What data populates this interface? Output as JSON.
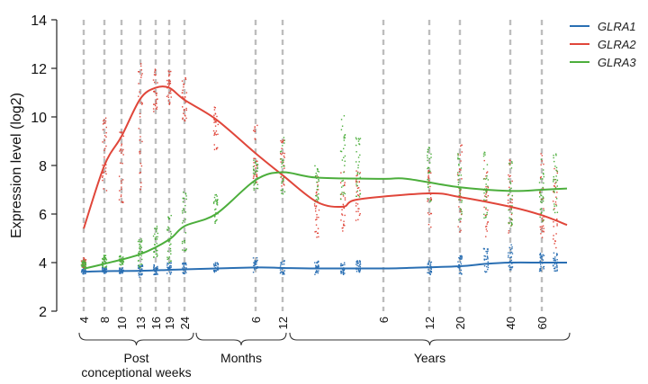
{
  "chart_data": {
    "type": "line",
    "ylabel": "Expression level (log2)",
    "ylim": [
      2,
      14
    ],
    "yticks": [
      2,
      4,
      6,
      8,
      10,
      12,
      14
    ],
    "x_ticks": [
      {
        "label": "4",
        "key": "4w"
      },
      {
        "label": "8",
        "key": "8w"
      },
      {
        "label": "10",
        "key": "10w"
      },
      {
        "label": "13",
        "key": "13w"
      },
      {
        "label": "16",
        "key": "16w"
      },
      {
        "label": "19",
        "key": "19w"
      },
      {
        "label": "24",
        "key": "24w"
      },
      {
        "label": "6",
        "key": "6m"
      },
      {
        "label": "12",
        "key": "12m"
      },
      {
        "label": "6",
        "key": "6y"
      },
      {
        "label": "12",
        "key": "12y"
      },
      {
        "label": "20",
        "key": "20y"
      },
      {
        "label": "40",
        "key": "40y"
      },
      {
        "label": "60",
        "key": "60y"
      }
    ],
    "age_groups": [
      {
        "label_lines": [
          "Post",
          "conceptional weeks"
        ],
        "from": "4w",
        "to": "24w"
      },
      {
        "label_lines": [
          "Months"
        ],
        "from": "24w",
        "to": "12m"
      },
      {
        "label_lines": [
          "Years"
        ],
        "from": "12m",
        "to": "80y"
      }
    ],
    "series": [
      {
        "name": "GLRA1",
        "color": "#2a6fb3",
        "points": [
          [
            "4w",
            3.62
          ],
          [
            "8w",
            3.65
          ],
          [
            "13w",
            3.66
          ],
          [
            "19w",
            3.7
          ],
          [
            "24w",
            3.72
          ],
          [
            "6m",
            3.8
          ],
          [
            "12m",
            3.78
          ],
          [
            "2y",
            3.76
          ],
          [
            "6y",
            3.76
          ],
          [
            "10y",
            3.78
          ],
          [
            "20y",
            3.85
          ],
          [
            "30y",
            3.95
          ],
          [
            "40y",
            4.0
          ],
          [
            "60y",
            4.0
          ],
          [
            "80y",
            4.0
          ]
        ]
      },
      {
        "name": "GLRA2",
        "color": "#e0463a",
        "points": [
          [
            "4w",
            5.4
          ],
          [
            "8w",
            8.0
          ],
          [
            "10w",
            9.2
          ],
          [
            "13w",
            10.75
          ],
          [
            "16w",
            11.2
          ],
          [
            "19w",
            11.2
          ],
          [
            "24w",
            10.7
          ],
          [
            "1m",
            9.9
          ],
          [
            "6m",
            8.5
          ],
          [
            "12m",
            7.6
          ],
          [
            "2y",
            6.5
          ],
          [
            "4y",
            6.3
          ],
          [
            "8y",
            6.6
          ],
          [
            "12y",
            6.85
          ],
          [
            "20y",
            6.7
          ],
          [
            "40y",
            6.3
          ],
          [
            "60y",
            5.95
          ],
          [
            "80y",
            5.55
          ]
        ]
      },
      {
        "name": "GLRA3",
        "color": "#4cae3c",
        "points": [
          [
            "4w",
            3.75
          ],
          [
            "8w",
            3.95
          ],
          [
            "13w",
            4.35
          ],
          [
            "19w",
            4.95
          ],
          [
            "24w",
            5.5
          ],
          [
            "1m",
            6.0
          ],
          [
            "6m",
            7.4
          ],
          [
            "12m",
            7.72
          ],
          [
            "2y",
            7.5
          ],
          [
            "6y",
            7.45
          ],
          [
            "10y",
            7.45
          ],
          [
            "20y",
            7.1
          ],
          [
            "40y",
            6.95
          ],
          [
            "60y",
            7.0
          ],
          [
            "80y",
            7.05
          ]
        ]
      }
    ],
    "sample_columns": [
      {
        "x": "4w",
        "values": {
          "GLRA1": [
            3.5,
            3.75
          ],
          "GLRA2": [
            3.8,
            4.2
          ],
          "GLRA3": [
            3.8,
            4.1
          ]
        }
      },
      {
        "x": "8w",
        "values": {
          "GLRA1": [
            3.55,
            3.8
          ],
          "GLRA2": [
            6.8,
            10.6
          ],
          "GLRA3": [
            3.8,
            4.3
          ]
        }
      },
      {
        "x": "10w",
        "values": {
          "GLRA1": [
            3.55,
            3.8
          ],
          "GLRA2": [
            6.0,
            9.5
          ],
          "GLRA3": [
            3.9,
            4.3
          ]
        }
      },
      {
        "x": "13w",
        "values": {
          "GLRA1": [
            3.4,
            3.9
          ],
          "GLRA2": [
            6.5,
            12.3
          ],
          "GLRA3": [
            3.8,
            5.0
          ]
        }
      },
      {
        "x": "16w",
        "values": {
          "GLRA1": [
            3.5,
            3.95
          ],
          "GLRA2": [
            10.2,
            12.0
          ],
          "GLRA3": [
            4.2,
            5.5
          ]
        }
      },
      {
        "x": "19w",
        "values": {
          "GLRA1": [
            3.5,
            4.0
          ],
          "GLRA2": [
            10.5,
            12.0
          ],
          "GLRA3": [
            4.0,
            6.0
          ]
        }
      },
      {
        "x": "24w",
        "values": {
          "GLRA1": [
            3.5,
            4.0
          ],
          "GLRA2": [
            9.8,
            11.7
          ],
          "GLRA3": [
            4.4,
            7.1
          ]
        }
      },
      {
        "x": "1m",
        "values": {
          "GLRA1": [
            3.6,
            4.0
          ],
          "GLRA2": [
            8.5,
            10.4
          ],
          "GLRA3": [
            5.6,
            6.8
          ]
        }
      },
      {
        "x": "6m",
        "values": {
          "GLRA1": [
            3.6,
            4.2
          ],
          "GLRA2": [
            7.2,
            9.7
          ],
          "GLRA3": [
            6.8,
            8.3
          ]
        }
      },
      {
        "x": "12m",
        "values": {
          "GLRA1": [
            3.5,
            4.1
          ],
          "GLRA2": [
            6.9,
            9.1
          ],
          "GLRA3": [
            6.8,
            9.2
          ]
        }
      },
      {
        "x": "2y",
        "values": {
          "GLRA1": [
            3.5,
            4.1
          ],
          "GLRA2": [
            5.0,
            7.6
          ],
          "GLRA3": [
            6.5,
            8.0
          ]
        }
      },
      {
        "x": "4y",
        "values": {
          "GLRA1": [
            3.5,
            4.0
          ],
          "GLRA2": [
            5.3,
            7.8
          ],
          "GLRA3": [
            6.6,
            10.1
          ]
        }
      },
      {
        "x": "8y",
        "values": {
          "GLRA1": [
            3.6,
            4.1
          ],
          "GLRA2": [
            5.6,
            7.8
          ],
          "GLRA3": [
            6.5,
            9.2
          ]
        }
      },
      {
        "x": "12y",
        "values": {
          "GLRA1": [
            3.5,
            4.1
          ],
          "GLRA2": [
            5.4,
            7.8
          ],
          "GLRA3": [
            6.3,
            8.8
          ]
        }
      },
      {
        "x": "20y",
        "values": {
          "GLRA1": [
            3.5,
            4.3
          ],
          "GLRA2": [
            5.2,
            9.0
          ],
          "GLRA3": [
            5.7,
            8.5
          ]
        }
      },
      {
        "x": "30y",
        "values": {
          "GLRA1": [
            3.6,
            4.6
          ],
          "GLRA2": [
            4.8,
            8.2
          ],
          "GLRA3": [
            5.8,
            8.6
          ]
        }
      },
      {
        "x": "40y",
        "values": {
          "GLRA1": [
            3.6,
            4.8
          ],
          "GLRA2": [
            4.5,
            8.3
          ],
          "GLRA3": [
            5.5,
            8.3
          ]
        }
      },
      {
        "x": "60y",
        "values": {
          "GLRA1": [
            3.6,
            4.4
          ],
          "GLRA2": [
            4.8,
            8.6
          ],
          "GLRA3": [
            5.6,
            8.4
          ]
        }
      },
      {
        "x": "70y",
        "values": {
          "GLRA1": [
            3.6,
            4.4
          ],
          "GLRA2": [
            4.6,
            8.0
          ],
          "GLRA3": [
            5.8,
            8.6
          ]
        }
      }
    ],
    "grid": "dashed vertical lines at sampled ages",
    "legend_position": "top-right"
  }
}
